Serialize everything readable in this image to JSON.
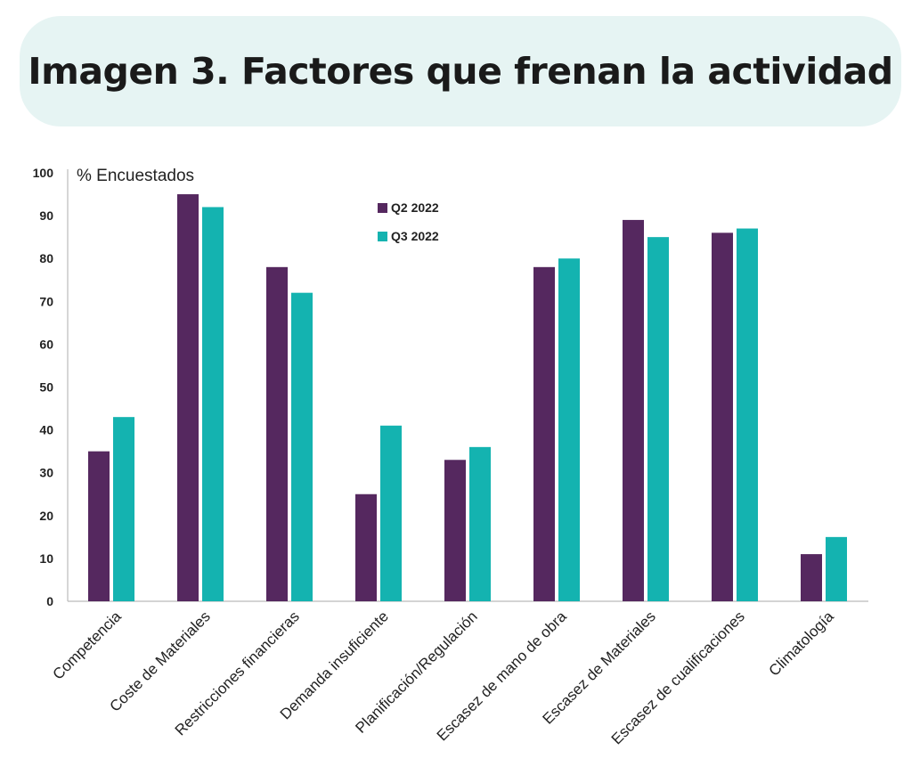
{
  "title": "Imagen 3. Factores que frenan la actividad",
  "chart_data": {
    "type": "bar",
    "ylabel": "% Encuestados",
    "ylim": [
      0,
      100
    ],
    "yticks": [
      0,
      10,
      20,
      30,
      40,
      50,
      60,
      70,
      80,
      90,
      100
    ],
    "categories": [
      "Competencia",
      "Coste de Materiales",
      "Restricciones financieras",
      "Demanda insuficiente",
      "Planificación/Regulación",
      "Escasez de mano de obra",
      "Escasez de Materiales",
      "Escasez de cualificaciones",
      "Climatología"
    ],
    "series": [
      {
        "name": "Q2 2022",
        "color": "#55285f",
        "values": [
          35,
          95,
          78,
          25,
          33,
          78,
          89,
          86,
          11
        ]
      },
      {
        "name": "Q3 2022",
        "color": "#14b3b0",
        "values": [
          43,
          92,
          72,
          41,
          36,
          80,
          85,
          87,
          15
        ]
      }
    ],
    "legend_position": "top-center",
    "grid": false
  }
}
